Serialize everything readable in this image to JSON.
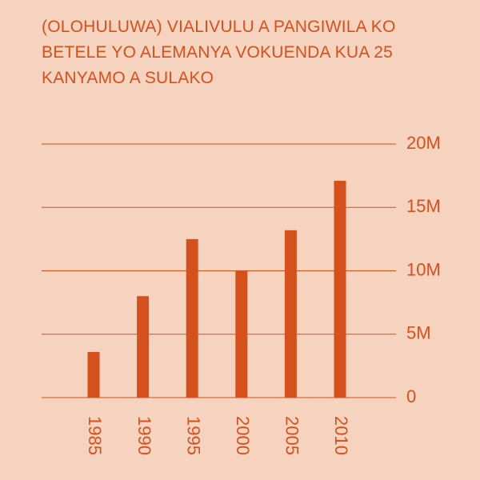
{
  "chart_data": {
    "type": "bar",
    "title": "(OLOHULUWA) VIALIVULU A PANGIWILA KO BETELE YO ALEMANYA VOKUENDA KUA 25 KANYAMO A SULAKO",
    "categories": [
      "1985",
      "1990",
      "1995",
      "2000",
      "2005",
      "2010"
    ],
    "values": [
      3600000,
      8000000,
      12500000,
      10000000,
      13200000,
      17100000
    ],
    "color": "#d4511e",
    "ylim": [
      0,
      20000000
    ],
    "yticks": [
      0,
      {
        "value": 5000000,
        "label": "5M"
      },
      {
        "value": 10000000,
        "label": "10M"
      },
      {
        "value": 15000000,
        "label": "15M"
      },
      {
        "value": 20000000,
        "label": "20M"
      }
    ],
    "grid": true
  }
}
